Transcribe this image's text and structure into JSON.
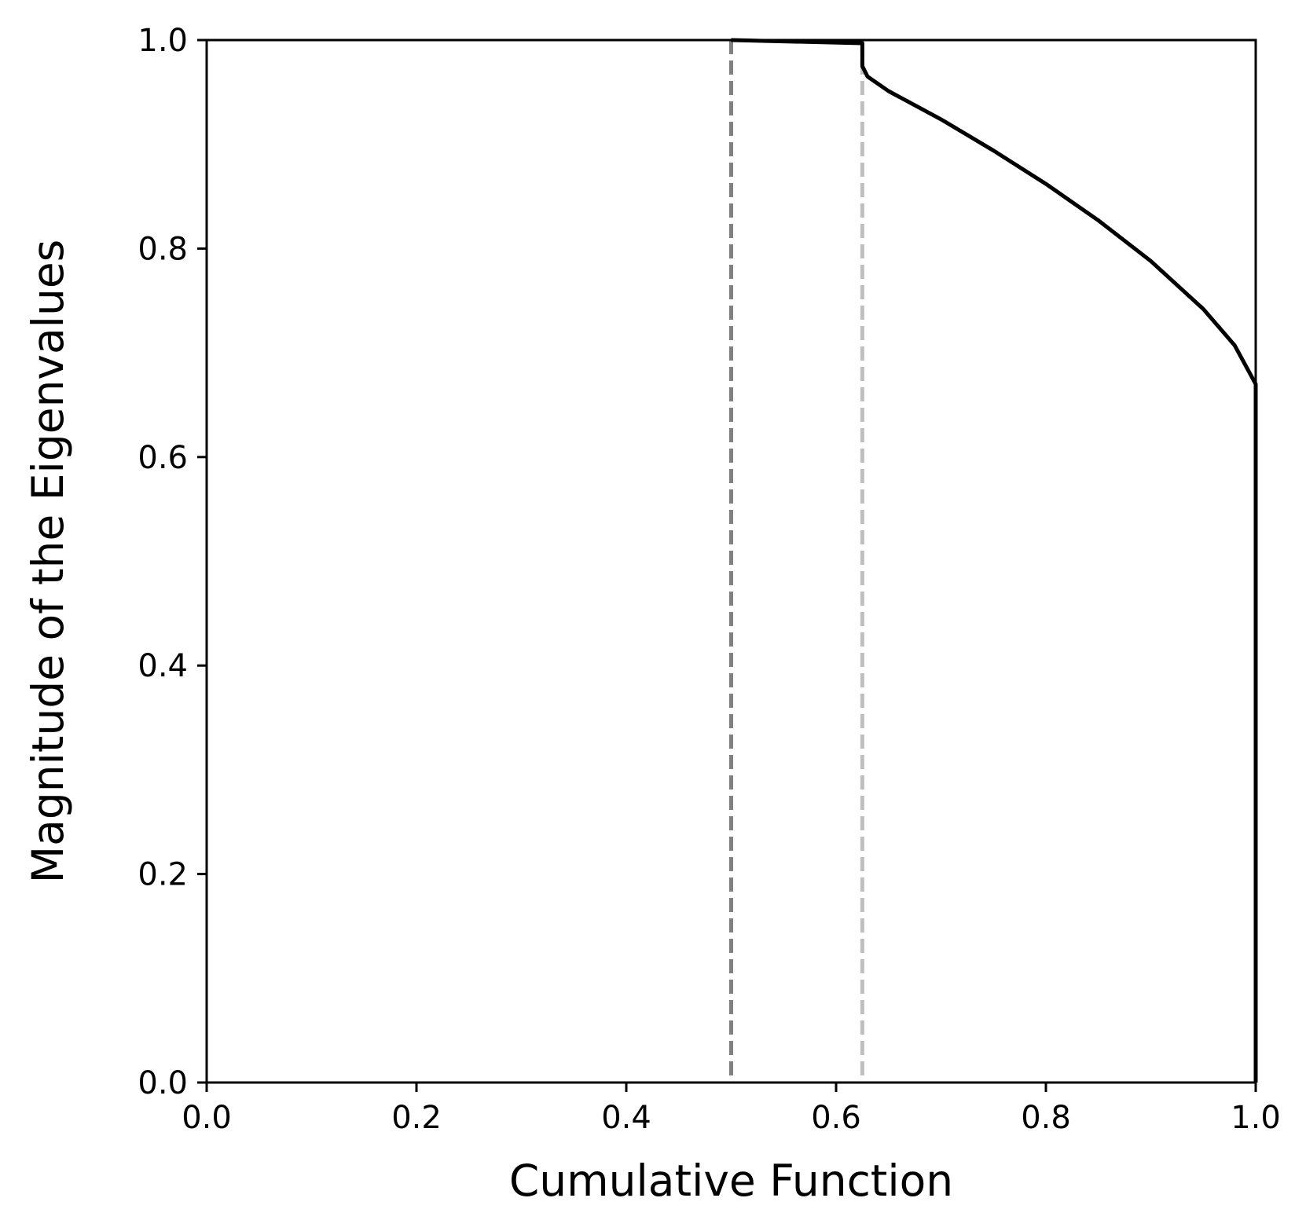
{
  "chart_data": {
    "type": "line",
    "title": "",
    "xlabel": "Cumulative Function",
    "ylabel": "Magnitude of the Eigenvalues",
    "xlim": [
      0.0,
      1.0
    ],
    "ylim": [
      0.0,
      1.0
    ],
    "xticks": [
      "0.0",
      "0.2",
      "0.4",
      "0.6",
      "0.8",
      "1.0"
    ],
    "yticks": [
      "0.0",
      "0.2",
      "0.4",
      "0.6",
      "0.8",
      "1.0"
    ],
    "grid": false,
    "legend": false,
    "series": [
      {
        "color": "#000000",
        "style": "solid",
        "x": [
          0.5,
          0.625,
          0.625,
          0.63,
          0.65,
          0.7,
          0.75,
          0.8,
          0.85,
          0.9,
          0.95,
          0.98,
          1.0,
          1.0
        ],
        "y": [
          1.0,
          0.997,
          0.975,
          0.965,
          0.951,
          0.924,
          0.894,
          0.862,
          0.827,
          0.788,
          0.742,
          0.707,
          0.67,
          0.0
        ]
      }
    ],
    "vlines": [
      {
        "x": 0.5,
        "color": "#808080",
        "style": "dashed"
      },
      {
        "x": 0.625,
        "color": "#bfbfbf",
        "style": "dashed"
      }
    ]
  }
}
